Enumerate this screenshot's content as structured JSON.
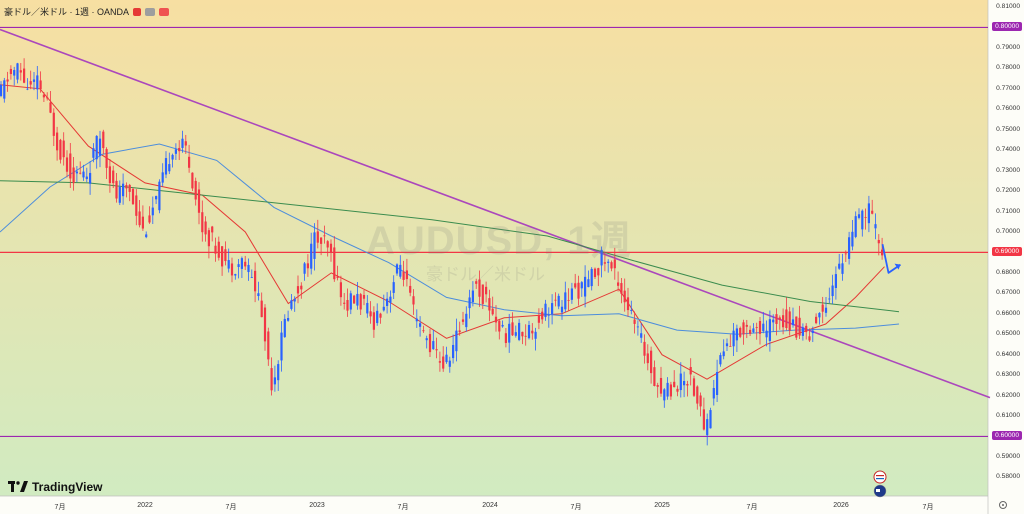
{
  "header": {
    "title": "豪ドル／米ドル · 1週 · OANDA"
  },
  "watermark": {
    "symbol": "AUDUSD, 1週",
    "name": "豪ドル／米ドル"
  },
  "logo": {
    "text": "TradingView"
  },
  "colors": {
    "bg_top": "#f7dfa2",
    "bg_bottom": "#d1ebc1",
    "up": "#2962ff",
    "down": "#f23645",
    "trendline": "#ab47bc",
    "hline_red": "#f23645",
    "hline_purple": "#9c27b0",
    "ma_red": "#e53935",
    "ma_blue": "#4c8ddc",
    "ma_green": "#3b8c4e",
    "arrow": "#2962ff"
  },
  "chart_data": {
    "type": "candlestick",
    "symbol": "AUDUSD",
    "timeframe": "1週",
    "broker": "OANDA",
    "y_axis": {
      "min": 0.58,
      "max": 0.81,
      "ticks": [
        "0.81000",
        "0.80000",
        "0.79000",
        "0.78000",
        "0.77000",
        "0.76000",
        "0.75000",
        "0.74000",
        "0.73000",
        "0.72000",
        "0.71000",
        "0.70000",
        "0.69000",
        "0.68000",
        "0.67000",
        "0.66000",
        "0.65000",
        "0.64000",
        "0.63000",
        "0.62000",
        "0.61000",
        "0.60000",
        "0.59000",
        "0.58000"
      ]
    },
    "x_axis": {
      "ticks": [
        {
          "label": "7月",
          "date": "2021-07"
        },
        {
          "label": "2022",
          "date": "2022-01"
        },
        {
          "label": "7月",
          "date": "2022-07"
        },
        {
          "label": "2023",
          "date": "2023-01"
        },
        {
          "label": "7月",
          "date": "2023-07"
        },
        {
          "label": "2024",
          "date": "2024-01"
        },
        {
          "label": "7月",
          "date": "2024-07"
        },
        {
          "label": "2025",
          "date": "2025-01"
        },
        {
          "label": "7月",
          "date": "2025-07"
        },
        {
          "label": "2026",
          "date": "2026-01"
        },
        {
          "label": "7月",
          "date": "2026-07"
        }
      ]
    },
    "horizontal_lines": [
      {
        "value": 0.8,
        "label": "0.80000",
        "color": "#9c27b0"
      },
      {
        "value": 0.69,
        "label": "0.69000",
        "color": "#f23645"
      },
      {
        "value": 0.6,
        "label": "0.60000",
        "color": "#9c27b0"
      }
    ],
    "trendline": {
      "start": {
        "date": "2021-01",
        "value": 0.799
      },
      "end": {
        "date": "2026-12",
        "value": 0.619
      }
    },
    "price_path": [
      [
        "2021-01",
        0.765
      ],
      [
        "2021-02",
        0.776
      ],
      [
        "2021-03",
        0.78
      ],
      [
        "2021-04",
        0.77
      ],
      [
        "2021-05",
        0.773
      ],
      [
        "2021-06",
        0.76
      ],
      [
        "2021-07",
        0.742
      ],
      [
        "2021-08",
        0.728
      ],
      [
        "2021-09",
        0.728
      ],
      [
        "2021-10",
        0.748
      ],
      [
        "2021-11",
        0.717
      ],
      [
        "2021-12",
        0.722
      ],
      [
        "2022-01",
        0.7
      ],
      [
        "2022-02",
        0.717
      ],
      [
        "2022-03",
        0.742
      ],
      [
        "2022-04",
        0.741
      ],
      [
        "2022-05",
        0.704
      ],
      [
        "2022-06",
        0.693
      ],
      [
        "2022-07",
        0.683
      ],
      [
        "2022-08",
        0.686
      ],
      [
        "2022-09",
        0.67
      ],
      [
        "2022-10",
        0.625
      ],
      [
        "2022-11",
        0.66
      ],
      [
        "2022-12",
        0.676
      ],
      [
        "2023-01",
        0.698
      ],
      [
        "2023-02",
        0.69
      ],
      [
        "2023-03",
        0.664
      ],
      [
        "2023-04",
        0.668
      ],
      [
        "2023-05",
        0.656
      ],
      [
        "2023-06",
        0.668
      ],
      [
        "2023-07",
        0.685
      ],
      [
        "2023-08",
        0.655
      ],
      [
        "2023-09",
        0.645
      ],
      [
        "2023-10",
        0.634
      ],
      [
        "2023-11",
        0.652
      ],
      [
        "2023-12",
        0.675
      ],
      [
        "2024-01",
        0.665
      ],
      [
        "2024-02",
        0.65
      ],
      [
        "2024-03",
        0.652
      ],
      [
        "2024-04",
        0.652
      ],
      [
        "2024-05",
        0.663
      ],
      [
        "2024-06",
        0.665
      ],
      [
        "2024-07",
        0.671
      ],
      [
        "2024-08",
        0.675
      ],
      [
        "2024-09",
        0.688
      ],
      [
        "2024-10",
        0.678
      ],
      [
        "2024-11",
        0.658
      ],
      [
        "2024-12",
        0.64
      ],
      [
        "2025-01",
        0.622
      ],
      [
        "2025-02",
        0.625
      ],
      [
        "2025-03",
        0.63
      ],
      [
        "2025-04",
        0.603
      ],
      [
        "2025-05",
        0.64
      ],
      [
        "2025-06",
        0.65
      ],
      [
        "2025-07",
        0.655
      ],
      [
        "2025-08",
        0.65
      ],
      [
        "2025-09",
        0.66
      ],
      [
        "2025-10",
        0.654
      ],
      [
        "2025-11",
        0.65
      ],
      [
        "2025-12",
        0.664
      ],
      [
        "2026-01",
        0.683
      ],
      [
        "2026-02",
        0.702
      ],
      [
        "2026-03",
        0.711
      ],
      [
        "2026-04",
        0.689
      ]
    ],
    "moving_averages": [
      {
        "color": "#e53935",
        "path": [
          [
            "2021-01",
            0.772
          ],
          [
            "2021-05",
            0.77
          ],
          [
            "2021-09",
            0.742
          ],
          [
            "2022-01",
            0.724
          ],
          [
            "2022-05",
            0.718
          ],
          [
            "2022-08",
            0.7
          ],
          [
            "2022-11",
            0.665
          ],
          [
            "2023-02",
            0.68
          ],
          [
            "2023-06",
            0.666
          ],
          [
            "2023-10",
            0.648
          ],
          [
            "2024-02",
            0.658
          ],
          [
            "2024-06",
            0.66
          ],
          [
            "2024-10",
            0.672
          ],
          [
            "2025-01",
            0.64
          ],
          [
            "2025-04",
            0.628
          ],
          [
            "2025-08",
            0.645
          ],
          [
            "2025-12",
            0.655
          ],
          [
            "2026-02",
            0.668
          ],
          [
            "2026-04",
            0.683
          ]
        ]
      },
      {
        "color": "#4c8ddc",
        "path": [
          [
            "2021-01",
            0.7
          ],
          [
            "2021-06",
            0.722
          ],
          [
            "2021-10",
            0.738
          ],
          [
            "2022-02",
            0.743
          ],
          [
            "2022-06",
            0.735
          ],
          [
            "2022-10",
            0.712
          ],
          [
            "2023-02",
            0.698
          ],
          [
            "2023-06",
            0.685
          ],
          [
            "2023-10",
            0.668
          ],
          [
            "2024-02",
            0.662
          ],
          [
            "2024-06",
            0.659
          ],
          [
            "2024-10",
            0.66
          ],
          [
            "2025-02",
            0.652
          ],
          [
            "2025-06",
            0.65
          ],
          [
            "2025-10",
            0.652
          ],
          [
            "2026-02",
            0.653
          ],
          [
            "2026-05",
            0.655
          ]
        ]
      },
      {
        "color": "#3b8c4e",
        "path": [
          [
            "2021-01",
            0.725
          ],
          [
            "2021-09",
            0.724
          ],
          [
            "2022-05",
            0.718
          ],
          [
            "2023-01",
            0.712
          ],
          [
            "2023-09",
            0.706
          ],
          [
            "2024-05",
            0.698
          ],
          [
            "2024-11",
            0.686
          ],
          [
            "2025-05",
            0.674
          ],
          [
            "2025-11",
            0.666
          ],
          [
            "2026-05",
            0.661
          ]
        ]
      }
    ],
    "annotations": [
      {
        "type": "arrow",
        "direction": "down-then-up",
        "at_date": "2026-04",
        "from_value": 0.694,
        "low_value": 0.68,
        "to_value": 0.684,
        "color": "#2962ff"
      }
    ]
  }
}
